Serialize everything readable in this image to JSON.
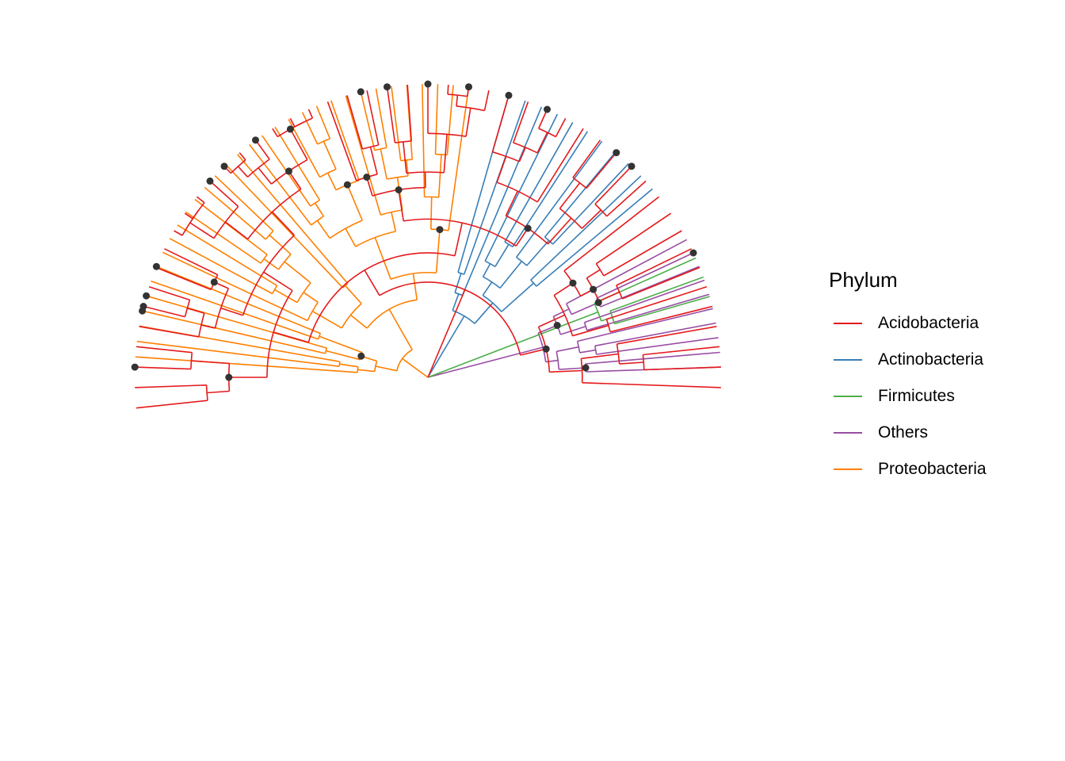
{
  "legend": {
    "title": "Phylum",
    "items": [
      {
        "label": "Acidobacteria",
        "color": "#E41A1C"
      },
      {
        "label": "Actinobacteria",
        "color": "#377EB8"
      },
      {
        "label": "Firmicutes",
        "color": "#4DAF4A"
      },
      {
        "label": "Others",
        "color": "#984EA3"
      },
      {
        "label": "Proteobacteria",
        "color": "#FF7F00"
      }
    ]
  },
  "node_point_color": "#333333",
  "tree": {
    "layout": "circular",
    "tip_count": {
      "Acidobacteria": 48,
      "Actinobacteria": 11,
      "Firmicutes": 3,
      "Others": 10,
      "Proteobacteria": 32
    }
  }
}
